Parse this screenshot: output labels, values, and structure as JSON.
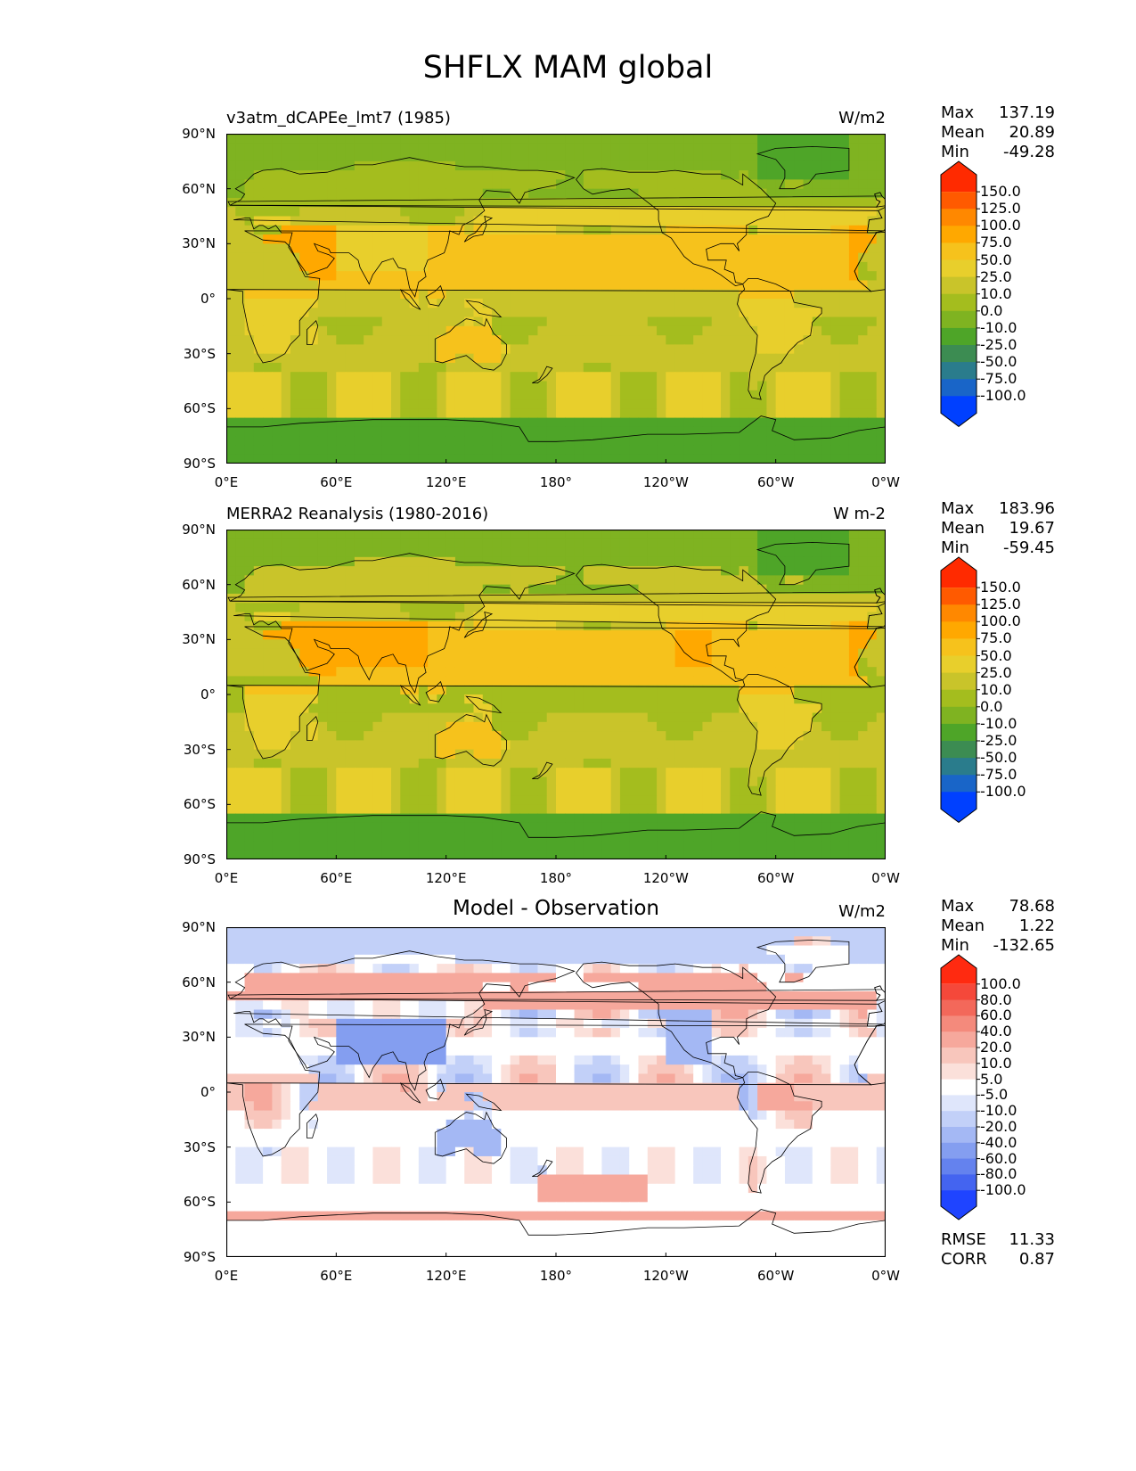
{
  "page": {
    "title": "SHFLX MAM global"
  },
  "chart_data": [
    {
      "type": "heatmap",
      "panel": "model",
      "title": "v3atm_dCAPEe_lmt7 (1985)",
      "units": "W/m2",
      "x_ticks": [
        "0°E",
        "60°E",
        "120°E",
        "180°",
        "120°W",
        "60°W",
        "0°W"
      ],
      "y_ticks": [
        "90°N",
        "60°N",
        "30°N",
        "0°",
        "30°S",
        "60°S",
        "90°S"
      ],
      "stats": {
        "max_label": "Max",
        "max": "137.19",
        "mean_label": "Mean",
        "mean": "20.89",
        "min_label": "Min",
        "min": "-49.28"
      },
      "colorbar": {
        "levels": [
          "150.0",
          "125.0",
          "100.0",
          "75.0",
          "50.0",
          "25.0",
          "10.0",
          "0.0",
          "-10.0",
          "-25.0",
          "-50.0",
          "-75.0",
          "-100.0"
        ],
        "colors": [
          "#ff2a00",
          "#ff5a00",
          "#ff8800",
          "#ffa800",
          "#f6c21c",
          "#e8cf2c",
          "#c9c42a",
          "#a4bd1e",
          "#7fb321",
          "#4ea528",
          "#3c8c52",
          "#2a7c8c",
          "#1965c8",
          "#0040ff"
        ]
      }
    },
    {
      "type": "heatmap",
      "panel": "observation",
      "title": "MERRA2 Reanalysis (1980-2016)",
      "units": "W m-2",
      "x_ticks": [
        "0°E",
        "60°E",
        "120°E",
        "180°",
        "120°W",
        "60°W",
        "0°W"
      ],
      "y_ticks": [
        "90°N",
        "60°N",
        "30°N",
        "0°",
        "30°S",
        "60°S",
        "90°S"
      ],
      "stats": {
        "max_label": "Max",
        "max": "183.96",
        "mean_label": "Mean",
        "mean": "19.67",
        "min_label": "Min",
        "min": "-59.45"
      },
      "colorbar": {
        "levels": [
          "150.0",
          "125.0",
          "100.0",
          "75.0",
          "50.0",
          "25.0",
          "10.0",
          "0.0",
          "-10.0",
          "-25.0",
          "-50.0",
          "-75.0",
          "-100.0"
        ],
        "colors": [
          "#ff2a00",
          "#ff5a00",
          "#ff8800",
          "#ffa800",
          "#f6c21c",
          "#e8cf2c",
          "#c9c42a",
          "#a4bd1e",
          "#7fb321",
          "#4ea528",
          "#3c8c52",
          "#2a7c8c",
          "#1965c8",
          "#0040ff"
        ]
      }
    },
    {
      "type": "heatmap",
      "panel": "difference",
      "title": "Model - Observation",
      "units": "W/m2",
      "x_ticks": [
        "0°E",
        "60°E",
        "120°E",
        "180°",
        "120°W",
        "60°W",
        "0°W"
      ],
      "y_ticks": [
        "90°N",
        "60°N",
        "30°N",
        "0°",
        "30°S",
        "60°S",
        "90°S"
      ],
      "stats": {
        "max_label": "Max",
        "max": "78.68",
        "mean_label": "Mean",
        "mean": "1.22",
        "min_label": "Min",
        "min": "-132.65"
      },
      "error_stats": {
        "rmse_label": "RMSE",
        "rmse": "11.33",
        "corr_label": "CORR",
        "corr": "0.87"
      },
      "colorbar": {
        "levels": [
          "100.0",
          "80.0",
          "60.0",
          "40.0",
          "20.0",
          "10.0",
          "5.0",
          "-5.0",
          "-10.0",
          "-20.0",
          "-40.0",
          "-60.0",
          "-80.0",
          "-100.0"
        ],
        "colors": [
          "#ff2a10",
          "#f5483a",
          "#f3685a",
          "#f48a7c",
          "#f6a89c",
          "#f8c6bc",
          "#fbe0da",
          "#ffffff",
          "#dfe6fb",
          "#c2d0f8",
          "#a4b8f4",
          "#849ef0",
          "#6482ee",
          "#4464f0",
          "#1f44ff"
        ]
      }
    }
  ]
}
